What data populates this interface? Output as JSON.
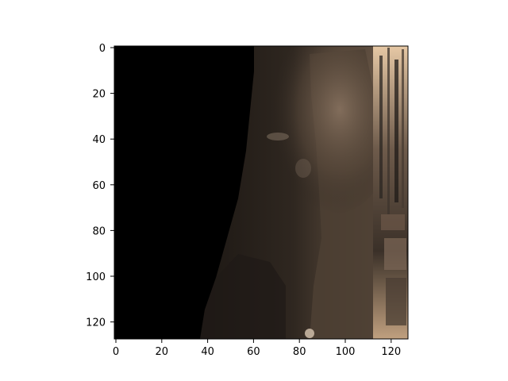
{
  "image": {
    "description_colors": {
      "background": "#ffffff",
      "masked_region": "#000000",
      "dark_subject": "#2c241e",
      "mid_subject": "#5a4a3c",
      "highlight_subject": "#8a7460",
      "right_edge_light": "#c9a98a"
    }
  },
  "axes": {
    "x_ticks": [
      "0",
      "20",
      "40",
      "60",
      "80",
      "100",
      "120"
    ],
    "y_ticks": [
      "0",
      "20",
      "40",
      "60",
      "80",
      "100",
      "120"
    ],
    "x_range": [
      0,
      128
    ],
    "y_range": [
      0,
      128
    ]
  }
}
